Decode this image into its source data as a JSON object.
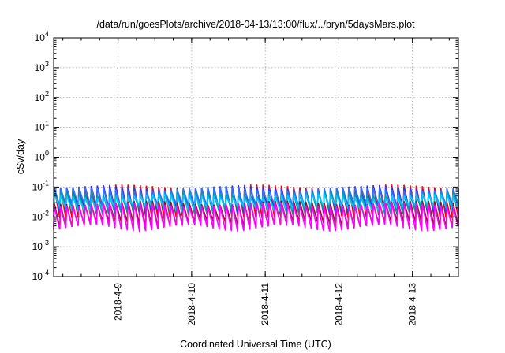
{
  "chart_data": {
    "type": "line",
    "title": "/data/run/goesPlots/archive/2018-04-13/13:00/flux/../bryn/5daysMars.plot",
    "xlabel": "Coordinated Universal Time (UTC)",
    "ylabel": "cSv/day",
    "yscale": "log",
    "ylim": [
      0.0001,
      10000
    ],
    "xlim": [
      "2018-04-08 03:00",
      "2018-04-13 15:00"
    ],
    "x_ticks": [
      "2018-4-9",
      "2018-4-10",
      "2018-4-11",
      "2018-4-12",
      "2018-4-13"
    ],
    "y_ticks": [
      {
        "base": "10",
        "exp": "-4"
      },
      {
        "base": "10",
        "exp": "-3"
      },
      {
        "base": "10",
        "exp": "-2"
      },
      {
        "base": "10",
        "exp": "-1"
      },
      {
        "base": "10",
        "exp": "0"
      },
      {
        "base": "10",
        "exp": "1"
      },
      {
        "base": "10",
        "exp": "2"
      },
      {
        "base": "10",
        "exp": "3"
      },
      {
        "base": "10",
        "exp": "4"
      }
    ],
    "grid": true,
    "legend": "none",
    "cycle_hours": 2,
    "series": [
      {
        "color": "#ff0000",
        "peak": 0.105,
        "trough": 0.012
      },
      {
        "color": "#1e3cff",
        "peak": 0.095,
        "trough": 0.018
      },
      {
        "color": "#3070ff",
        "peak": 0.085,
        "trough": 0.022
      },
      {
        "color": "#00a0a0",
        "peak": 0.06,
        "trough": 0.016
      },
      {
        "color": "#00c8ff",
        "peak": 0.05,
        "trough": 0.02
      },
      {
        "color": "#8b1a1a",
        "peak": 0.03,
        "trough": 0.006
      },
      {
        "color": "#ff00ff",
        "peak": 0.026,
        "trough": 0.0045
      }
    ]
  }
}
